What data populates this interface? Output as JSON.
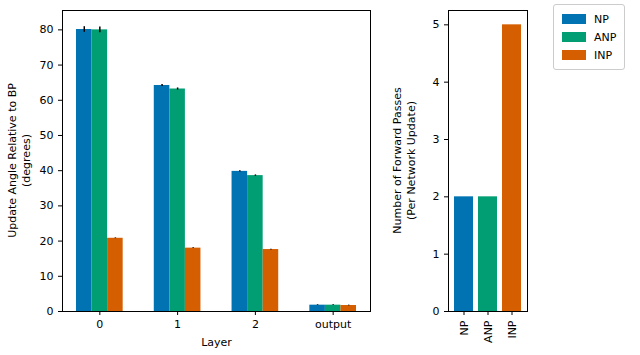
{
  "chart_data": [
    {
      "type": "bar",
      "categories": [
        "0",
        "1",
        "2",
        "output"
      ],
      "x_label": "Layer",
      "y_label": "Update Angle Relative to BP\n(degrees)",
      "series": [
        {
          "name": "NP",
          "color": "#0173b2",
          "values": [
            80.1,
            64.2,
            39.8,
            1.8
          ],
          "errors": [
            0.8,
            0.3,
            0.2,
            0.1
          ]
        },
        {
          "name": "ANP",
          "color": "#029e73",
          "values": [
            80.0,
            63.2,
            38.6,
            1.8
          ],
          "errors": [
            0.8,
            0.3,
            0.2,
            0.1
          ]
        },
        {
          "name": "INP",
          "color": "#d55e00",
          "values": [
            20.8,
            18.0,
            17.6,
            1.7
          ],
          "errors": [
            0.1,
            0.1,
            0.1,
            0.1
          ]
        }
      ],
      "ylim": [
        0,
        85.5
      ],
      "yticks": [
        0,
        10,
        20,
        30,
        40,
        50,
        60,
        70,
        80
      ],
      "legend": "upper right"
    },
    {
      "type": "bar",
      "categories": [
        "NP",
        "ANP",
        "INP"
      ],
      "values": [
        2,
        2,
        5
      ],
      "colors": [
        "#0173b2",
        "#029e73",
        "#d55e00"
      ],
      "y_label": "Number of Forward Passes\n(Per Network Update)",
      "ylim": [
        0,
        5.25
      ],
      "yticks": [
        0,
        1,
        2,
        3,
        4,
        5
      ]
    }
  ]
}
